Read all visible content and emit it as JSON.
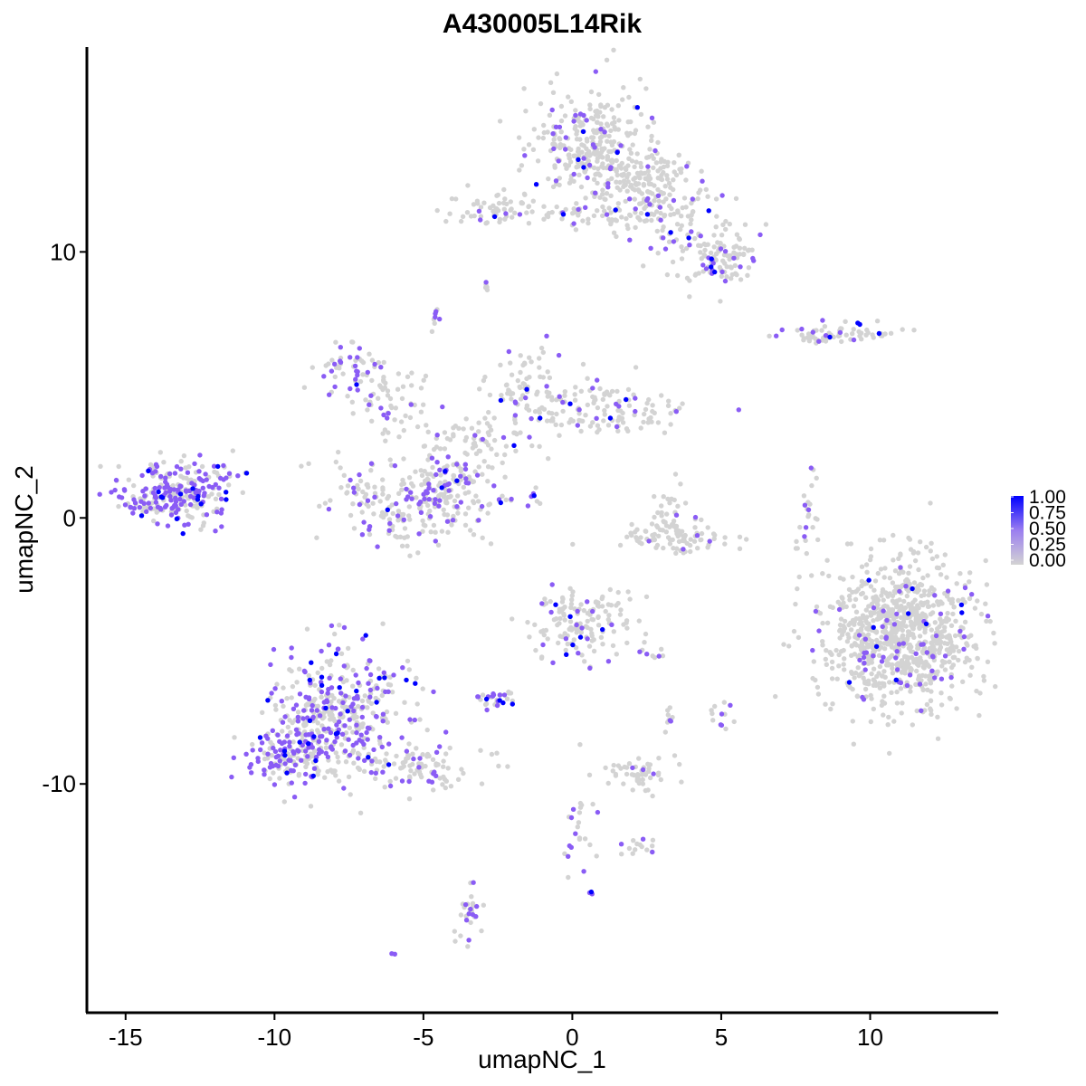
{
  "chart_data": {
    "type": "scatter",
    "title": "A430005L14Rik",
    "xlabel": "umapNC_1",
    "ylabel": "umapNC_2",
    "xlim": [
      -16.3,
      14.3
    ],
    "ylim": [
      -18.6,
      17.7
    ],
    "x_ticks": [
      -15,
      -10,
      -5,
      0,
      5,
      10
    ],
    "x_tick_labels": [
      "-15",
      "-10",
      "-5",
      "0",
      "5",
      "10"
    ],
    "y_ticks": [
      -10,
      0,
      10
    ],
    "y_tick_labels": [
      "-10",
      "0",
      "10"
    ],
    "grid": false,
    "legend": {
      "placement": "right",
      "type": "colorbar",
      "labels": [
        "1.00",
        "0.75",
        "0.50",
        "0.25",
        "0.00"
      ],
      "values": [
        1.0,
        0.75,
        0.5,
        0.25,
        0.0
      ],
      "low_color": "#d3d3d3",
      "high_color": "#0000ff"
    },
    "color_scale": {
      "low": "#d3d3d3",
      "mid": "#8a5cf5",
      "high": "#0000ff"
    },
    "clusters": [
      {
        "cx": 0.8,
        "cy": 14.0,
        "sx": 1.0,
        "sy": 1.1,
        "n": 320,
        "frac": 0.14
      },
      {
        "cx": 2.6,
        "cy": 12.1,
        "sx": 1.1,
        "sy": 0.8,
        "n": 200,
        "frac": 0.12
      },
      {
        "cx": 4.7,
        "cy": 10.0,
        "sx": 0.8,
        "sy": 0.6,
        "n": 120,
        "frac": 0.18
      },
      {
        "cx": -2.6,
        "cy": 11.6,
        "sx": 0.7,
        "sy": 0.35,
        "n": 60,
        "frac": 0.12
      },
      {
        "cx": -0.2,
        "cy": 11.3,
        "sx": 1.1,
        "sy": 0.25,
        "n": 30,
        "frac": 0.2
      },
      {
        "cx": 8.9,
        "cy": 6.9,
        "sx": 1.0,
        "sy": 0.18,
        "n": 70,
        "frac": 0.22
      },
      {
        "cx": -7.5,
        "cy": 5.6,
        "sx": 0.55,
        "sy": 0.45,
        "n": 50,
        "frac": 0.45
      },
      {
        "cx": -6.0,
        "cy": 4.5,
        "sx": 0.9,
        "sy": 0.6,
        "n": 60,
        "frac": 0.2
      },
      {
        "cx": -1.5,
        "cy": 4.8,
        "sx": 0.8,
        "sy": 0.9,
        "n": 90,
        "frac": 0.16
      },
      {
        "cx": 1.2,
        "cy": 4.0,
        "sx": 1.4,
        "sy": 0.5,
        "n": 120,
        "frac": 0.18
      },
      {
        "cx": -3.5,
        "cy": 2.5,
        "sx": 1.3,
        "sy": 0.7,
        "n": 80,
        "frac": 0.12
      },
      {
        "cx": -5.3,
        "cy": 0.6,
        "sx": 1.4,
        "sy": 0.85,
        "n": 220,
        "frac": 0.2
      },
      {
        "cx": -4.2,
        "cy": 1.3,
        "sx": 0.5,
        "sy": 0.5,
        "n": 60,
        "frac": 0.45
      },
      {
        "cx": -13.5,
        "cy": 0.9,
        "sx": 0.8,
        "sy": 0.55,
        "n": 240,
        "frac": 0.55
      },
      {
        "cx": -12.0,
        "cy": 1.5,
        "sx": 0.6,
        "sy": 0.5,
        "n": 40,
        "frac": 0.5
      },
      {
        "cx": 3.5,
        "cy": -0.7,
        "sx": 0.9,
        "sy": 0.3,
        "n": 90,
        "frac": 0.05
      },
      {
        "cx": 3.2,
        "cy": 0.3,
        "sx": 0.3,
        "sy": 0.6,
        "n": 25,
        "frac": 0.1
      },
      {
        "cx": 7.9,
        "cy": 0.0,
        "sx": 0.18,
        "sy": 0.8,
        "n": 25,
        "frac": 0.3
      },
      {
        "cx": 11.0,
        "cy": -4.4,
        "sx": 1.25,
        "sy": 1.4,
        "n": 900,
        "frac": 0.09
      },
      {
        "cx": 0.4,
        "cy": -4.0,
        "sx": 0.9,
        "sy": 0.7,
        "n": 150,
        "frac": 0.14
      },
      {
        "cx": -7.8,
        "cy": -7.4,
        "sx": 1.1,
        "sy": 1.3,
        "n": 420,
        "frac": 0.42
      },
      {
        "cx": -9.6,
        "cy": -8.9,
        "sx": 0.7,
        "sy": 0.6,
        "n": 120,
        "frac": 0.5
      },
      {
        "cx": -5.3,
        "cy": -9.4,
        "sx": 1.1,
        "sy": 0.45,
        "n": 90,
        "frac": 0.25
      },
      {
        "cx": -2.6,
        "cy": -6.8,
        "sx": 0.35,
        "sy": 0.18,
        "n": 30,
        "frac": 0.4
      },
      {
        "cx": 2.3,
        "cy": -9.6,
        "sx": 0.6,
        "sy": 0.35,
        "n": 50,
        "frac": 0.15
      },
      {
        "cx": 0.2,
        "cy": -11.5,
        "sx": 0.35,
        "sy": 1.0,
        "n": 25,
        "frac": 0.25
      },
      {
        "cx": 2.3,
        "cy": -12.4,
        "sx": 0.35,
        "sy": 0.15,
        "n": 15,
        "frac": 0.2
      },
      {
        "cx": -3.4,
        "cy": -14.9,
        "sx": 0.2,
        "sy": 0.6,
        "n": 30,
        "frac": 0.35
      },
      {
        "cx": 5.0,
        "cy": -7.4,
        "sx": 0.2,
        "sy": 0.3,
        "n": 12,
        "frac": 0.4
      },
      {
        "cx": 3.3,
        "cy": -7.6,
        "sx": 0.1,
        "sy": 0.3,
        "n": 10,
        "frac": 0.1
      },
      {
        "cx": 2.6,
        "cy": -5.1,
        "sx": 0.3,
        "sy": 0.1,
        "n": 8,
        "frac": 0.5
      },
      {
        "cx": -2.8,
        "cy": 8.8,
        "sx": 0.1,
        "sy": 0.1,
        "n": 5,
        "frac": 0.2
      },
      {
        "cx": -4.6,
        "cy": 7.4,
        "sx": 0.12,
        "sy": 0.2,
        "n": 8,
        "frac": 0.6
      },
      {
        "cx": -1.5,
        "cy": 0.8,
        "sx": 0.3,
        "sy": 0.15,
        "n": 8,
        "frac": 0.5
      },
      {
        "cx": 0.6,
        "cy": -14.1,
        "sx": 0.05,
        "sy": 0.05,
        "n": 3,
        "frac": 1.0
      },
      {
        "cx": -6.0,
        "cy": -16.4,
        "sx": 0.05,
        "sy": 0.05,
        "n": 2,
        "frac": 1.0
      }
    ]
  }
}
